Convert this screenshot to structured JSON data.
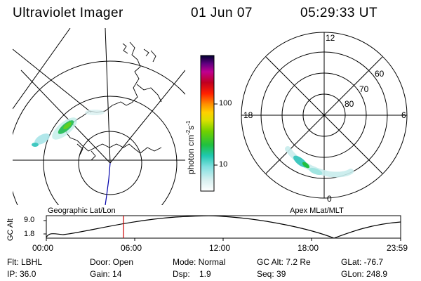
{
  "header": {
    "title": "Ultraviolet Imager",
    "date": "01 Jun 07",
    "time": "05:29:33 UT"
  },
  "colorbar": {
    "label": "photon cm",
    "exp": "-2",
    "s": "s",
    "exp2": "-1",
    "ticks": [
      "100",
      "10"
    ]
  },
  "left_panel": {
    "label": "Geographic Lat/Lon"
  },
  "right_panel": {
    "label": "Apex MLat/MLT",
    "mlt_labels": {
      "top": "12",
      "left": "18",
      "right": "6",
      "bottom": "0"
    },
    "lat_labels": [
      "60",
      "70",
      "80"
    ]
  },
  "altitude_plot": {
    "ylabel": "GC Alt",
    "yticks": [
      "9.0",
      "1.8"
    ],
    "xticks": [
      "00:00",
      "06:00",
      "12:00",
      "18:00",
      "23:59"
    ],
    "marker_time": "05:29:33"
  },
  "stats": {
    "flt": "Flt: LBHL",
    "ip": "IP: 36.0",
    "door": "Door: Open",
    "gain": "Gain: 14",
    "mode": "Mode: Normal",
    "dsp": "Dsp:    1.9",
    "gcalt": "GC Alt: 7.2 Re",
    "seq": "Seq: 39",
    "glat": "GLat: -76.7",
    "glon": "GLon: 248.9"
  },
  "colors": {
    "line": "#000000",
    "marker": "#cc0000",
    "track": "#0000aa"
  }
}
